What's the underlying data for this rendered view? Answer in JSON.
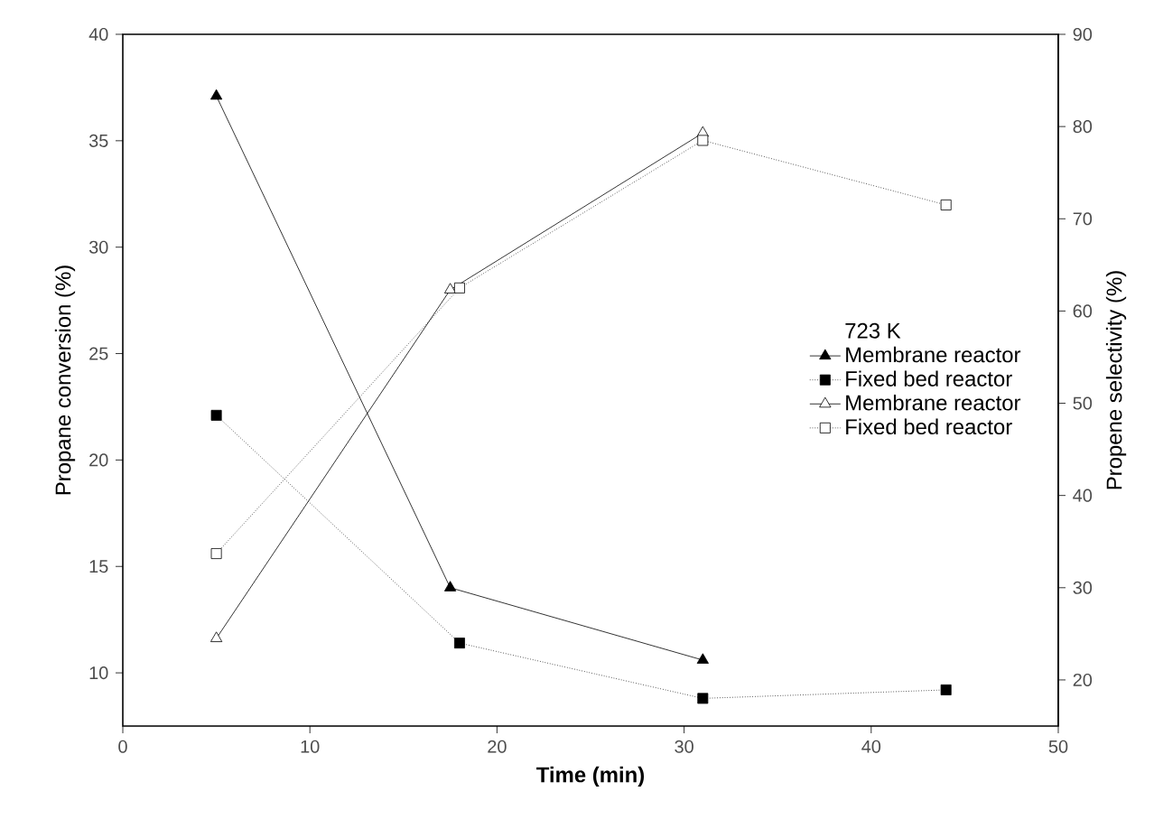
{
  "chart_data": {
    "type": "line",
    "xlabel": "Time (min)",
    "ylabel": "Propane conversion (%)",
    "y2label": "Propene selectivity (%)",
    "legend_title": "723 K",
    "legend": "right",
    "xlim": [
      0,
      50
    ],
    "xticks": [
      0,
      10,
      20,
      30,
      40,
      50
    ],
    "ylim": [
      7.5,
      40
    ],
    "yticks": [
      10,
      15,
      20,
      25,
      30,
      35,
      40
    ],
    "y2lim": [
      15,
      90
    ],
    "y2ticks": [
      20,
      30,
      40,
      50,
      60,
      70,
      80,
      90
    ],
    "grid": false,
    "series": [
      {
        "name": "Membrane reactor",
        "color": "#000000",
        "x": [
          5,
          17.5,
          31
        ],
        "values": [
          37.1,
          14.0,
          10.6
        ],
        "marker": "triangle",
        "line_style": "solid"
      },
      {
        "name": "Fixed bed reactor",
        "color": "#000000",
        "x": [
          5,
          18,
          31,
          44
        ],
        "values": [
          22.1,
          11.4,
          8.8,
          9.2
        ],
        "marker": "square",
        "line_style": "dotted"
      },
      {
        "name": "Membrane reactor",
        "color": "#000000",
        "x": [
          5,
          17.5,
          31
        ],
        "values": [
          24.5,
          62.3,
          79.3
        ],
        "marker": "triangle",
        "line_style": "solid",
        "axis": "y2"
      },
      {
        "name": "Fixed bed reactor",
        "color": "#000000",
        "x": [
          5,
          18,
          31,
          44
        ],
        "values": [
          33.7,
          62.5,
          78.5,
          71.5
        ],
        "marker": "square",
        "line_style": "dotted",
        "axis": "y2"
      }
    ]
  }
}
